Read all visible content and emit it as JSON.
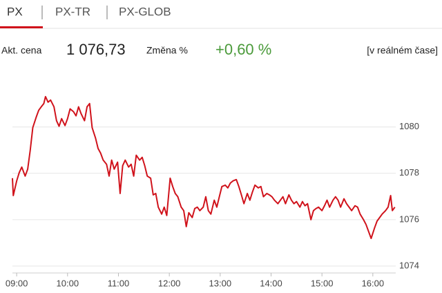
{
  "tabs": [
    "PX",
    "PX-TR",
    "PX-GLOB"
  ],
  "quote": {
    "price_label": "Akt. cena",
    "price": "1 076,73",
    "change_label": "Změna %",
    "change": "+0,60 %",
    "mode": "[v reálném čase]"
  },
  "chart_data": {
    "type": "line",
    "color": "#d0121b",
    "grid": true,
    "x": [
      535,
      536,
      540,
      543,
      546,
      550,
      553,
      556,
      559,
      563,
      566,
      569,
      572,
      574,
      577,
      580,
      584,
      587,
      590,
      593,
      597,
      600,
      603,
      607,
      610,
      613,
      616,
      620,
      623,
      626,
      629,
      633,
      636,
      639,
      642,
      646,
      649,
      652,
      655,
      659,
      662,
      665,
      668,
      672,
      675,
      678,
      681,
      685,
      688,
      691,
      694,
      698,
      701,
      704,
      707,
      711,
      714,
      717,
      721,
      724,
      727,
      730,
      734,
      737,
      740,
      743,
      747,
      750,
      753,
      756,
      760,
      763,
      766,
      769,
      773,
      776,
      779,
      782,
      786,
      789,
      792,
      795,
      799,
      802,
      805,
      808,
      812,
      815,
      818,
      821,
      825,
      828,
      831,
      835,
      838,
      841,
      844,
      848,
      851,
      854,
      857,
      861,
      864,
      867,
      870,
      874,
      877,
      880,
      883,
      887,
      890,
      893,
      896,
      900,
      903,
      906,
      909,
      913,
      916,
      919,
      922,
      926,
      929,
      932,
      935,
      939,
      942,
      945,
      949,
      952,
      955,
      958,
      962,
      965,
      968,
      971,
      975,
      978,
      981,
      983,
      986
    ],
    "values": [
      1077.79,
      1077.04,
      1077.67,
      1078.03,
      1078.27,
      1077.88,
      1078.18,
      1079.0,
      1079.97,
      1080.42,
      1080.72,
      1080.87,
      1081.01,
      1081.31,
      1081.07,
      1081.16,
      1080.87,
      1080.27,
      1080.03,
      1080.36,
      1080.06,
      1080.36,
      1080.78,
      1080.66,
      1080.48,
      1080.87,
      1080.57,
      1080.27,
      1080.87,
      1081.01,
      1079.97,
      1079.52,
      1079.07,
      1078.87,
      1078.57,
      1078.39,
      1077.88,
      1078.57,
      1078.18,
      1078.48,
      1077.13,
      1078.33,
      1078.57,
      1078.27,
      1078.39,
      1077.88,
      1078.78,
      1078.57,
      1078.69,
      1078.33,
      1077.88,
      1077.79,
      1077.07,
      1077.13,
      1076.54,
      1076.24,
      1076.54,
      1076.18,
      1077.79,
      1077.43,
      1077.13,
      1076.99,
      1076.54,
      1076.39,
      1075.7,
      1076.3,
      1076.09,
      1076.48,
      1076.54,
      1076.39,
      1076.54,
      1076.99,
      1076.39,
      1076.24,
      1076.84,
      1076.54,
      1076.99,
      1077.43,
      1077.49,
      1077.37,
      1077.58,
      1077.67,
      1077.73,
      1077.43,
      1077.07,
      1076.69,
      1077.13,
      1076.84,
      1077.19,
      1077.49,
      1077.37,
      1077.43,
      1076.99,
      1077.13,
      1077.07,
      1076.99,
      1076.84,
      1076.69,
      1076.84,
      1076.99,
      1076.69,
      1077.07,
      1076.84,
      1076.69,
      1076.78,
      1076.54,
      1076.78,
      1076.6,
      1076.69,
      1076.0,
      1076.39,
      1076.48,
      1076.54,
      1076.39,
      1076.6,
      1076.84,
      1076.54,
      1076.84,
      1076.99,
      1076.84,
      1076.54,
      1076.9,
      1076.69,
      1076.54,
      1076.39,
      1076.6,
      1076.54,
      1076.24,
      1076.0,
      1075.79,
      1075.49,
      1075.19,
      1075.64,
      1075.94,
      1076.09,
      1076.24,
      1076.39,
      1076.54,
      1077.04,
      1076.39,
      1076.54
    ],
    "xlim": [
      535,
      987
    ],
    "xticks": [
      {
        "value": 540,
        "label": "09:00"
      },
      {
        "value": 600,
        "label": "10:00"
      },
      {
        "value": 660,
        "label": "11:00"
      },
      {
        "value": 720,
        "label": "12:00"
      },
      {
        "value": 780,
        "label": "13:00"
      },
      {
        "value": 840,
        "label": "14:00"
      },
      {
        "value": 900,
        "label": "15:00"
      },
      {
        "value": 960,
        "label": "16:00"
      }
    ],
    "ylim": [
      1073.7,
      1081.9
    ],
    "yticks": [
      1074,
      1076,
      1078,
      1080
    ]
  }
}
